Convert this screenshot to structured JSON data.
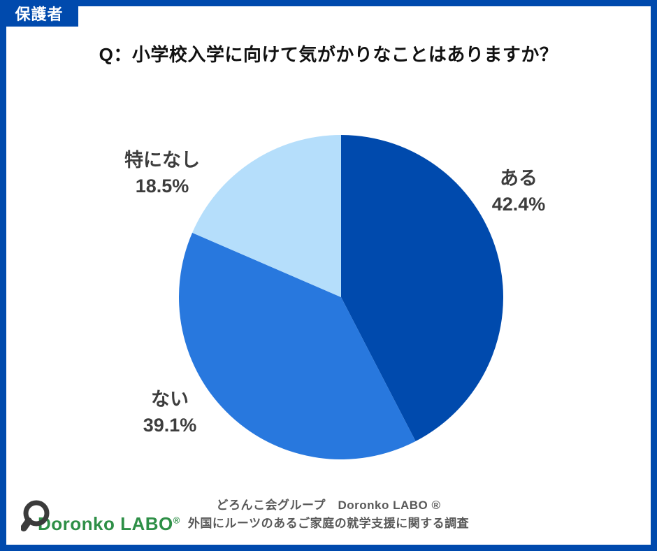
{
  "theme": {
    "accent": "#004aad",
    "title_color": "#111111",
    "label_color": "#3d3d3d",
    "footer_color": "#595959",
    "logo_color": "#2e8f47",
    "magnifier_color": "#3b3b3b"
  },
  "badge": {
    "label": "保護者"
  },
  "title": "Q：小学校入学に向けて気がかりなことはありますか？",
  "chart_data": {
    "type": "pie",
    "title": "Q：小学校入学に向けて気がかりなことはありますか？",
    "unit": "%",
    "start_angle_deg": 0,
    "direction": "clockwise",
    "legend_position": "outside-labels",
    "slices": [
      {
        "label": "ある",
        "value": 42.4,
        "pct_text": "42.4%",
        "color": "#004aad"
      },
      {
        "label": "ない",
        "value": 39.1,
        "pct_text": "39.1%",
        "color": "#2878de"
      },
      {
        "label": "特になし",
        "value": 18.5,
        "pct_text": "18.5%",
        "color": "#b5defb"
      }
    ]
  },
  "footer": {
    "line1": "どろんこ会グループ　Doronko LABO ®",
    "line2": "外国にルーツのあるご家庭の就学支援に関する調査",
    "logo_text": "Doronko LABO",
    "logo_registered": "®"
  }
}
